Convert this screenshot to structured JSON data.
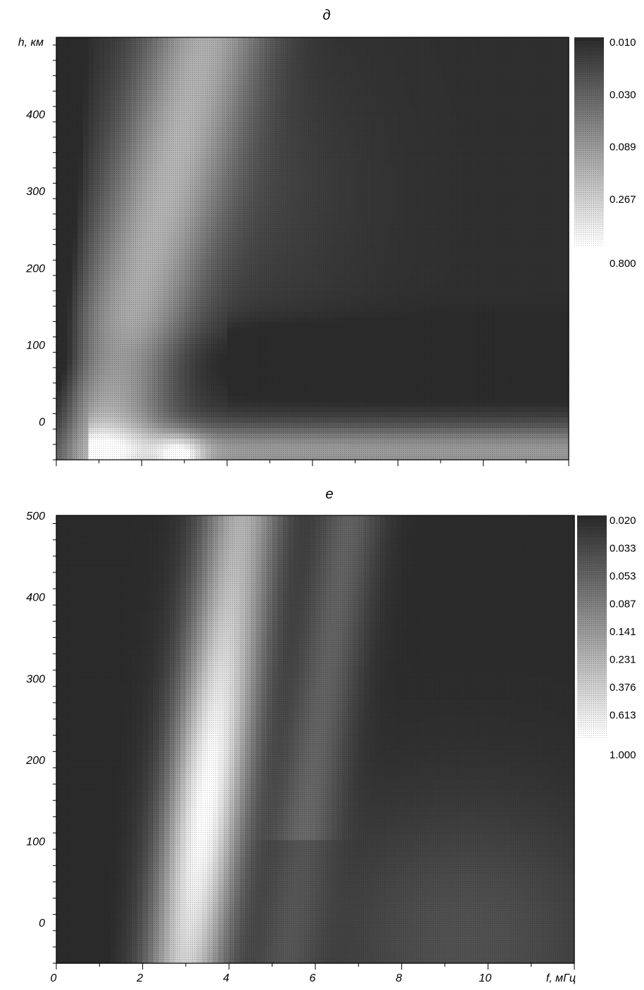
{
  "chart_data": [
    {
      "type": "heatmap",
      "title": "д",
      "ylabel": "h, км",
      "xlabel": "",
      "xlim": [
        0,
        12
      ],
      "ylim": [
        -50,
        500
      ],
      "xticks": [
        0,
        2,
        4,
        6,
        8,
        10
      ],
      "xtick_labels": [
        "",
        "",
        "",
        "",
        "",
        ""
      ],
      "yticks": [
        0,
        100,
        200,
        300,
        400
      ],
      "ytick_labels": [
        "0",
        "100",
        "200",
        "300",
        "400"
      ],
      "colorbar": {
        "scale": "log",
        "levels": [
          0.01,
          0.03,
          0.089,
          0.267,
          0.8
        ],
        "labels": [
          "0.010",
          "0.030",
          "0.089",
          "0.267",
          "0.800"
        ],
        "low_color": "#2b2b2b",
        "high_color": "#ffffff"
      },
      "features": [
        {
          "kind": "diagonal_ridge",
          "f_at_h_min": 0.6,
          "f_at_h_max": 3.2,
          "peak_value": 0.15
        },
        {
          "kind": "bright_band_near_ground",
          "h_center": -40,
          "value": 0.4
        },
        {
          "kind": "bright_spot",
          "f": 2.9,
          "h": -45,
          "value": 0.8
        },
        {
          "kind": "dark_band",
          "h_center": 80,
          "value": 0.012
        }
      ]
    },
    {
      "type": "heatmap",
      "title": "е",
      "ylabel": "",
      "xlabel": "f, мГц",
      "xlim": [
        0,
        12
      ],
      "ylim": [
        -50,
        500
      ],
      "xticks": [
        0,
        2,
        4,
        6,
        8,
        10
      ],
      "xtick_labels": [
        "0",
        "2",
        "4",
        "6",
        "8",
        "10"
      ],
      "yticks": [
        0,
        100,
        200,
        300,
        400,
        500
      ],
      "ytick_labels": [
        "0",
        "100",
        "200",
        "300",
        "400",
        "500"
      ],
      "colorbar": {
        "scale": "log",
        "levels": [
          0.02,
          0.033,
          0.053,
          0.087,
          0.141,
          0.231,
          0.376,
          0.613,
          1.0
        ],
        "labels": [
          "0.020",
          "0.033",
          "0.053",
          "0.087",
          "0.141",
          "0.231",
          "0.376",
          "0.613",
          "1.000"
        ],
        "low_color": "#2b2b2b",
        "high_color": "#ffffff"
      },
      "features": [
        {
          "kind": "vertical_ridge",
          "f_at_h_min": 3.0,
          "f_at_h_max": 4.3,
          "peak_value": 1.0,
          "peak_h": 150
        },
        {
          "kind": "secondary_ridge",
          "f_at_h_min": 5.3,
          "f_at_h_max": 6.8,
          "peak_value": 0.06
        },
        {
          "kind": "low_band_right",
          "f_range": [
            7,
            12
          ],
          "value": 0.05
        }
      ]
    }
  ]
}
